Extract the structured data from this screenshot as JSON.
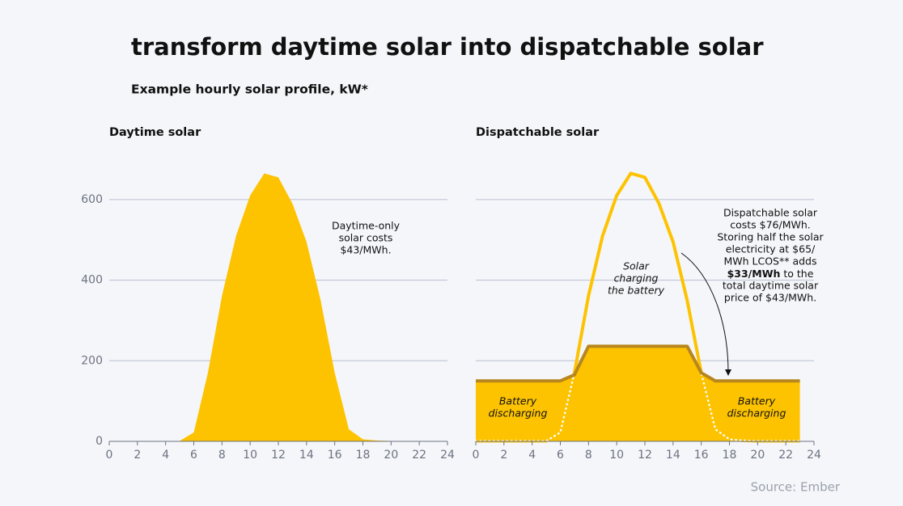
{
  "title": "transform daytime solar into dispatchable solar",
  "subtitle": "Example hourly solar profile, kW*",
  "source": "Source: Ember",
  "chart_data": [
    {
      "type": "area",
      "title": "Daytime solar",
      "x": [
        0,
        1,
        2,
        3,
        4,
        5,
        6,
        7,
        8,
        9,
        10,
        11,
        12,
        13,
        14,
        15,
        16,
        17,
        18,
        19,
        20,
        21,
        22,
        23
      ],
      "values": [
        1,
        1,
        1,
        1,
        1,
        1,
        22,
        170,
        361,
        510,
        610,
        665,
        655,
        590,
        495,
        350,
        170,
        30,
        5,
        2,
        1,
        1,
        1,
        1
      ],
      "color": "#fdc300",
      "xlim": [
        0,
        24
      ],
      "xticks": [
        0,
        2,
        4,
        6,
        8,
        10,
        12,
        14,
        16,
        18,
        20,
        22,
        24
      ],
      "ylim": [
        0,
        700
      ],
      "yticks": [
        0,
        200,
        400,
        600
      ],
      "grid": true,
      "show_ytick_labels": true,
      "note": [
        "Daytime-only",
        "solar costs",
        "$43/MWh."
      ]
    },
    {
      "type": "area",
      "title": "Dispatchable solar",
      "x": [
        0,
        1,
        2,
        3,
        4,
        5,
        6,
        7,
        8,
        9,
        10,
        11,
        12,
        13,
        14,
        15,
        16,
        17,
        18,
        19,
        20,
        21,
        22,
        23
      ],
      "series": [
        {
          "color": "#fdc300",
          "values": [
            1,
            1,
            1,
            1,
            1,
            1,
            22,
            170,
            361,
            510,
            610,
            665,
            655,
            590,
            495,
            350,
            170,
            30,
            5,
            2,
            1,
            1,
            1,
            1
          ],
          "fill": false
        },
        {
          "color": "#b8861e",
          "values": [
            150,
            150,
            150,
            150,
            150,
            150,
            150,
            165,
            236,
            236,
            236,
            236,
            236,
            236,
            236,
            236,
            170,
            150,
            150,
            150,
            150,
            150,
            150,
            150
          ],
          "fill": true,
          "fill_color": "#fdc300"
        }
      ],
      "xlim": [
        0,
        24
      ],
      "xticks": [
        0,
        2,
        4,
        6,
        8,
        10,
        12,
        14,
        16,
        18,
        20,
        22,
        24
      ],
      "ylim": [
        0,
        700
      ],
      "yticks": [
        0,
        200,
        400,
        600
      ],
      "grid": true,
      "show_ytick_labels": false,
      "center_label": [
        "Solar",
        "charging",
        "the battery"
      ],
      "left_label": [
        "Battery",
        "discharging"
      ],
      "right_label": [
        "Battery",
        "discharging"
      ],
      "note": [
        "Dispatchable solar",
        "costs $76/MWh.",
        "Storing half the solar",
        "electricity at $65/",
        "MWh LCOS** adds",
        {
          "bold": "$33/MWh",
          "text": " to the"
        },
        "total daytime solar",
        "price of $43/MWh."
      ]
    }
  ]
}
